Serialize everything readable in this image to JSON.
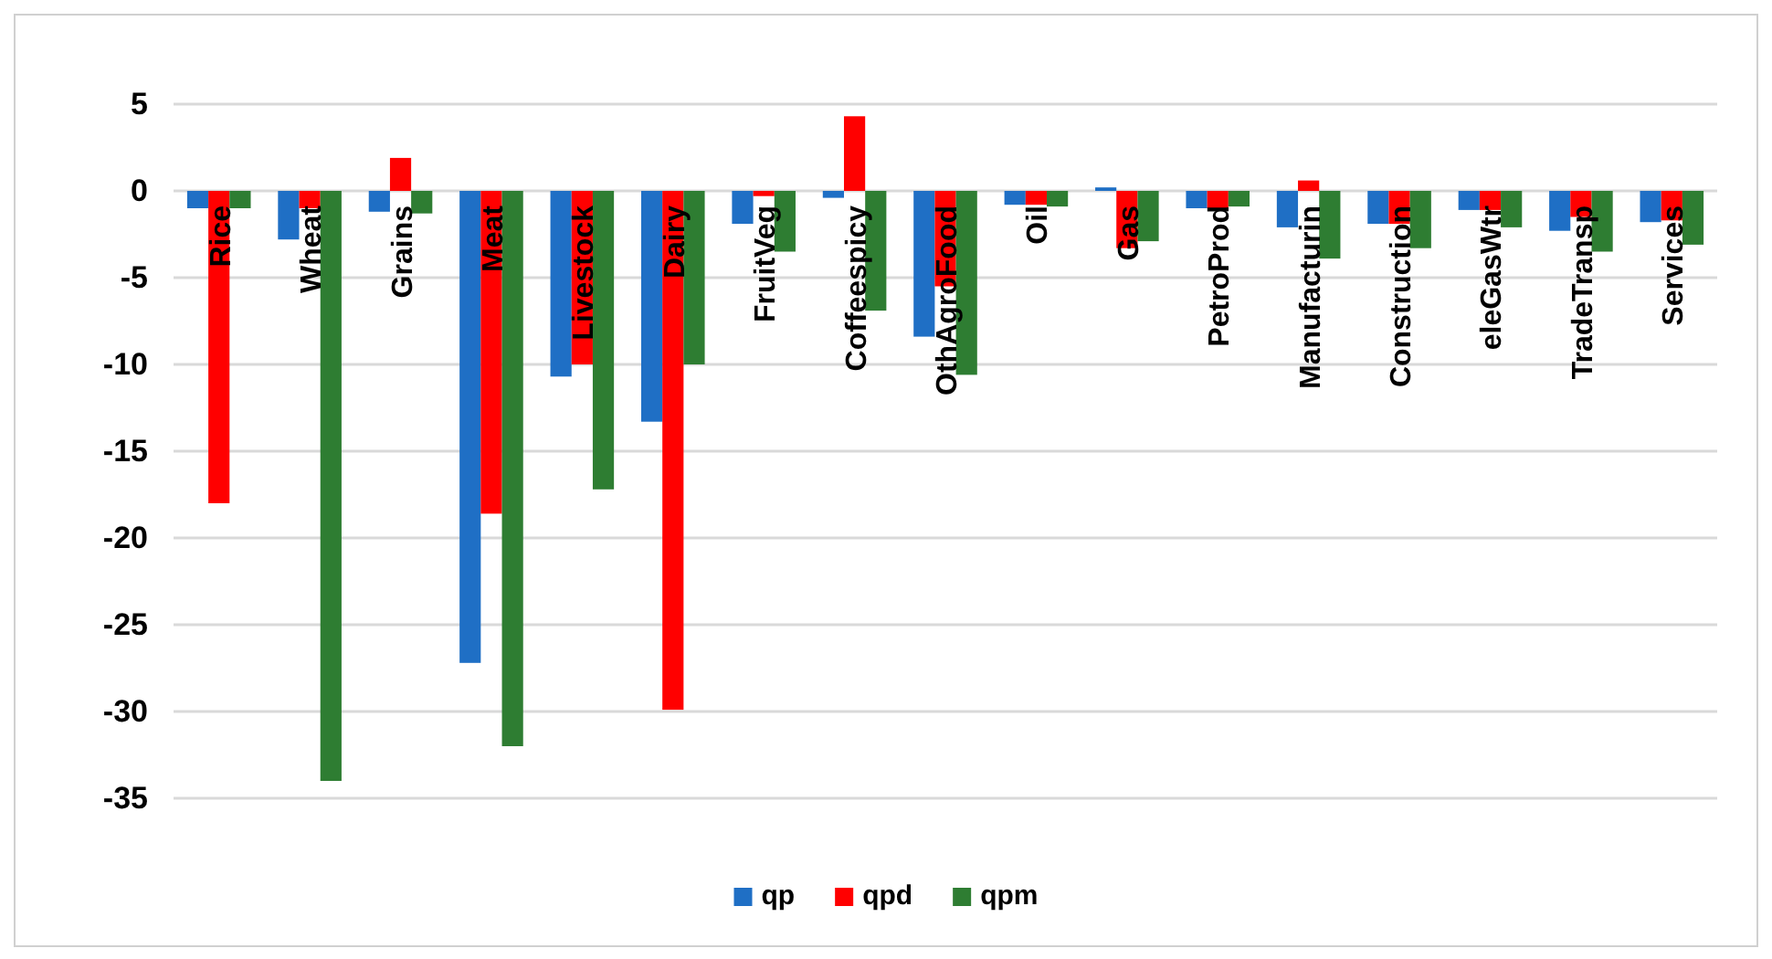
{
  "chart_data": {
    "type": "bar",
    "categories": [
      "Rice",
      "Wheat",
      "Grains",
      "Meat",
      "Livestock",
      "Dairy",
      "FruitVeg",
      "Coffeespicy",
      "OthAgroFood",
      "Oil",
      "Gas",
      "PetroProd",
      "Manufacturin",
      "Construction",
      "eleGasWtr",
      "TradeTransp",
      "Services"
    ],
    "series": [
      {
        "name": "qp",
        "color": "#1f6fc5",
        "values": [
          -1,
          -2.8,
          -1.2,
          -27.2,
          -10.7,
          -13.3,
          -1.9,
          -0.4,
          -8.4,
          -0.8,
          0.2,
          -1,
          -2.1,
          -1.9,
          -1.1,
          -2.3,
          -1.8
        ]
      },
      {
        "name": "qpd",
        "color": "#ff0000",
        "values": [
          -18,
          -1,
          1.9,
          -18.6,
          -10,
          -29.9,
          -0.3,
          4.3,
          -5.5,
          -0.8,
          -3.3,
          -1,
          0.6,
          -1.9,
          -1.1,
          -1.5,
          -1.7
        ]
      },
      {
        "name": "qpm",
        "color": "#2e7d32",
        "values": [
          -1,
          -34,
          -1.3,
          -32,
          -17.2,
          -10,
          -3.5,
          -6.9,
          -10.6,
          -0.9,
          -2.9,
          -0.9,
          -3.9,
          -3.3,
          -2.1,
          -3.5,
          -3.1
        ]
      }
    ],
    "ylim": [
      -35,
      5
    ],
    "yticks": [
      -35,
      -30,
      -25,
      -20,
      -15,
      -10,
      -5,
      0,
      5
    ],
    "grid": "y",
    "legend": "bottom"
  }
}
